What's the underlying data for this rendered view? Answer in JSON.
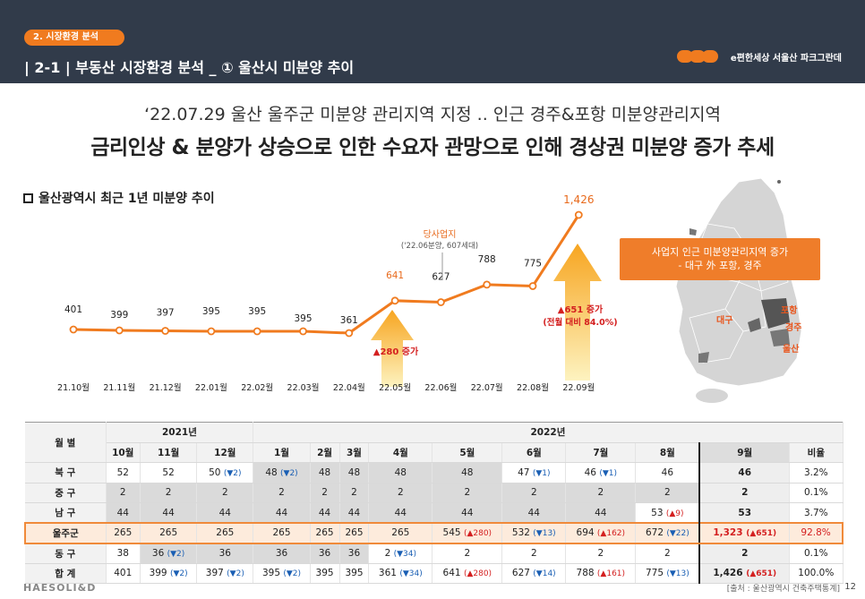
{
  "header": {
    "section_tag": "2. 시장환경 분석",
    "title": "| 2-1 |  부동산 시장환경 분석 _ ① 울산시 미분양 추이",
    "brand": "e편한세상 서울산 파크그란데"
  },
  "subtitle1": "‘22.07.29 울산 울주군 미분양 관리지역 지정 .. 인근 경주&포항 미분양관리지역",
  "subtitle2": "금리인상 & 분양가 상승으로 인한 수요자 관망으로 인해 경상권 미분양 증가 추세",
  "chart_title": "울산광역시 최근 1년 미분양 추이",
  "chart_data": {
    "type": "line",
    "categories": [
      "21.10월",
      "21.11월",
      "21.12월",
      "22.01월",
      "22.02월",
      "22.03월",
      "22.04월",
      "22.05월",
      "22.06월",
      "22.07월",
      "22.08월",
      "22.09월"
    ],
    "values": [
      401,
      399,
      397,
      395,
      395,
      395,
      361,
      641,
      627,
      788,
      775,
      1426
    ],
    "value_labels": [
      "401",
      "399",
      "397",
      "395",
      "395",
      "395",
      "361",
      "641",
      "627",
      "788",
      "775",
      "1,426"
    ],
    "color": "#f07b1f",
    "annotations": {
      "site_title": "당사업지",
      "site_detail": "('22.06분양, 607세대)",
      "increase_may": "▲280 증가",
      "increase_sep": "▲651 증가",
      "increase_sep_detail": "(전월 대비 84.0%)"
    }
  },
  "map": {
    "callout_line1": "사업지 인근 미분양관리지역 증가",
    "callout_line2": "- 대구 外 포항, 경주",
    "labels": [
      "대구",
      "포항",
      "경주",
      "울산"
    ]
  },
  "table": {
    "col_group_label": "월 별",
    "year_2021": "2021년",
    "year_2022": "2022년",
    "months": [
      "10월",
      "11월",
      "12월",
      "1월",
      "2월",
      "3월",
      "4월",
      "5월",
      "6월",
      "7월",
      "8월",
      "9월",
      "비율"
    ],
    "rows": [
      {
        "name": "북 구",
        "cells": [
          "52",
          "52",
          "50 (▼2)",
          "48 (▼2)",
          "48",
          "48",
          "48",
          "48",
          "47 (▼1)",
          "46 (▼1)",
          "46",
          "46",
          "3.2%"
        ]
      },
      {
        "name": "중 구",
        "cells": [
          "2",
          "2",
          "2",
          "2",
          "2",
          "2",
          "2",
          "2",
          "2",
          "2",
          "2",
          "2",
          "0.1%"
        ]
      },
      {
        "name": "남 구",
        "cells": [
          "44",
          "44",
          "44",
          "44",
          "44",
          "44",
          "44",
          "44",
          "44",
          "44",
          "53 (▲9)",
          "53",
          "3.7%"
        ]
      },
      {
        "name": "울주군",
        "cells": [
          "265",
          "265",
          "265",
          "265",
          "265",
          "265",
          "265",
          "545 (▲280)",
          "532 (▼13)",
          "694 (▲162)",
          "672 (▼22)",
          "1,323 (▲651)",
          "92.8%"
        ]
      },
      {
        "name": "동 구",
        "cells": [
          "38",
          "36 (▼2)",
          "36",
          "36",
          "36",
          "36",
          "2 (▼34)",
          "2",
          "2",
          "2",
          "2",
          "2",
          "0.1%"
        ]
      },
      {
        "name": "합 계",
        "cells": [
          "401",
          "399 (▼2)",
          "397 (▼2)",
          "395 (▼2)",
          "395",
          "395",
          "361 (▼34)",
          "641 (▲280)",
          "627 (▼14)",
          "788 (▲161)",
          "775 (▼13)",
          "1,426 (▲651)",
          "100.0%"
        ]
      }
    ]
  },
  "footer": {
    "company": "HAESOLI&D",
    "source": "[출처 : 울산광역시 건축주택통계]",
    "page": "12"
  }
}
